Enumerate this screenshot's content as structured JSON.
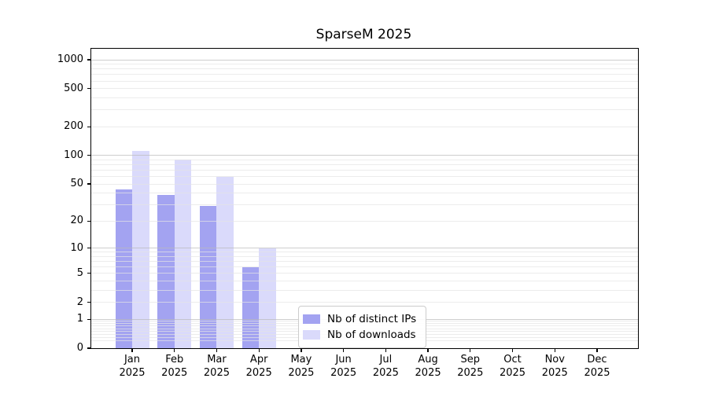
{
  "figure": {
    "title": "SparseM 2025"
  },
  "chart_data": {
    "type": "bar",
    "title": "SparseM 2025",
    "categories": [
      "Jan",
      "Feb",
      "Mar",
      "Apr",
      "May",
      "Jun",
      "Jul",
      "Aug",
      "Sep",
      "Oct",
      "Nov",
      "Dec"
    ],
    "year_label": "2025",
    "series": [
      {
        "name": "Nb of distinct IPs",
        "color": "#a3a3f1",
        "values": [
          44,
          38,
          29,
          6,
          0,
          0,
          0,
          0,
          0,
          0,
          0,
          0
        ]
      },
      {
        "name": "Nb of downloads",
        "color": "#dadafb",
        "values": [
          112,
          90,
          60,
          10,
          0,
          0,
          0,
          0,
          0,
          0,
          0,
          0
        ]
      }
    ],
    "xlabel": "",
    "ylabel": "",
    "yscale": "log1p",
    "ylim": [
      0,
      1300
    ],
    "yticks": [
      0,
      1,
      2,
      5,
      10,
      20,
      50,
      100,
      200,
      500,
      1000
    ],
    "grid": {
      "on": true,
      "major_lines": [
        1,
        10,
        100,
        1000
      ],
      "minor_decades": [
        0.1,
        1,
        10,
        100
      ],
      "minor_subs": [
        2,
        3,
        4,
        5,
        6,
        7,
        8,
        9
      ]
    },
    "legend_position": "inside-bottom-center-left"
  },
  "legend": {
    "items": [
      {
        "label": "Nb of distinct IPs",
        "color": "#a3a3f1"
      },
      {
        "label": "Nb of downloads",
        "color": "#dadafb"
      }
    ]
  }
}
